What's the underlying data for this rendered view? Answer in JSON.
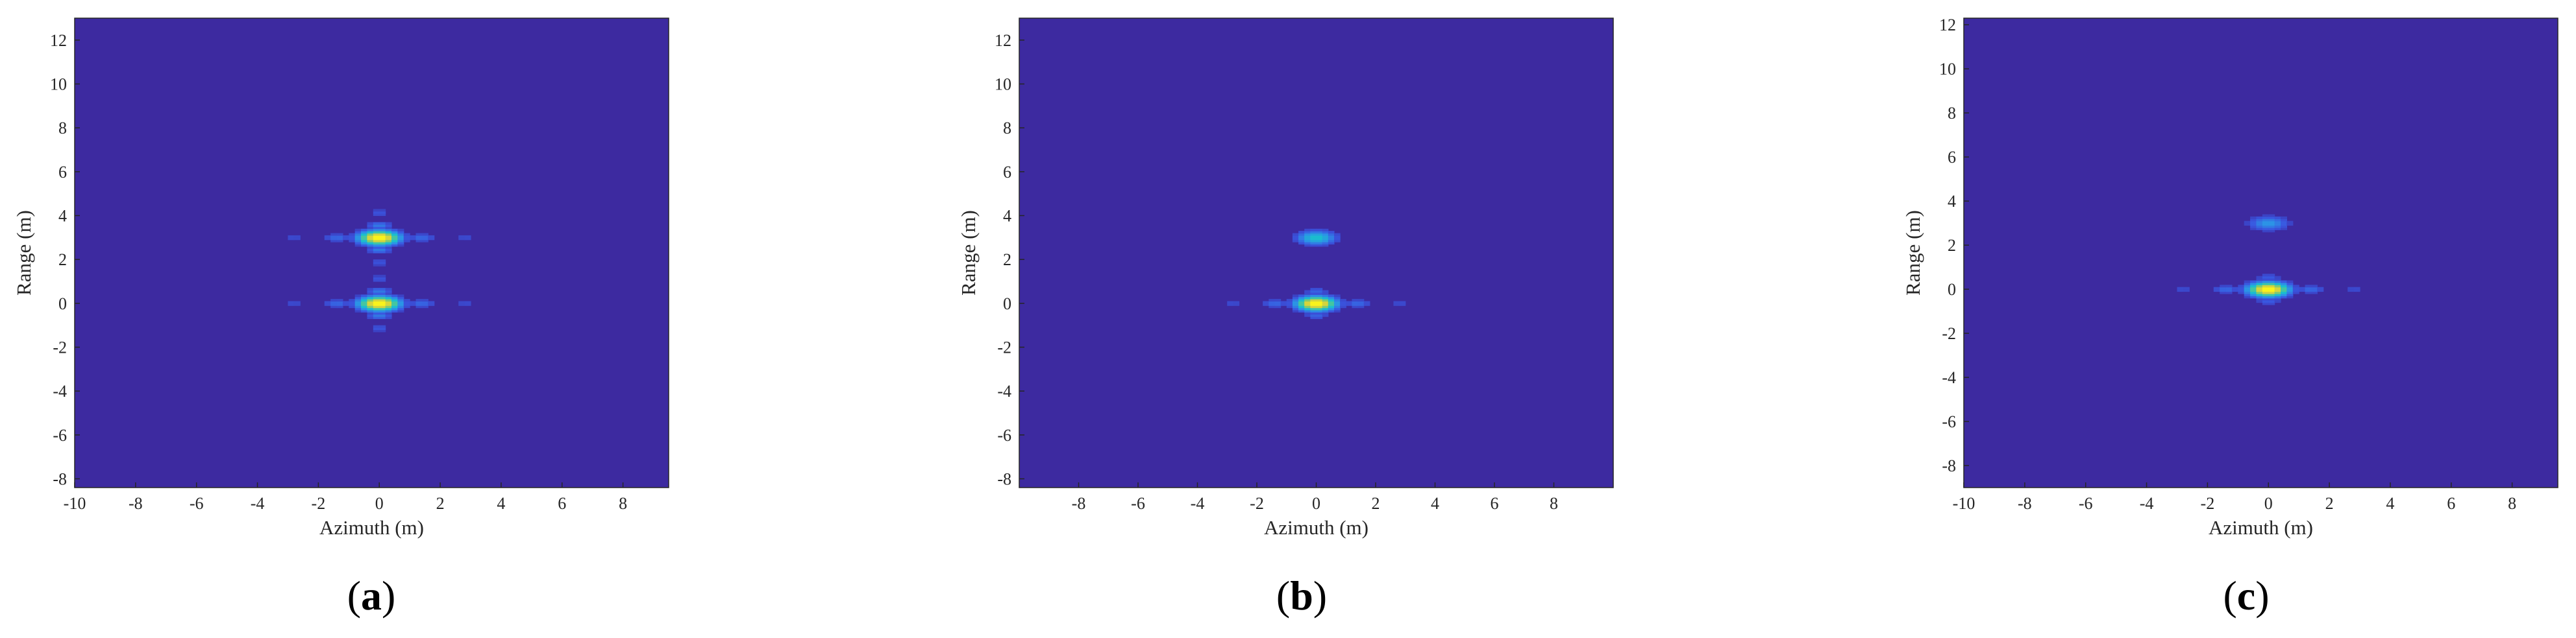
{
  "figure": {
    "background_color": "#3d2aa0",
    "colormap": [
      "#3d2aa0",
      "#3a55e0",
      "#2c93e6",
      "#1bbdcf",
      "#57ca8c",
      "#b8c94d",
      "#f6e32a",
      "#f9fb14"
    ]
  },
  "chart_data": [
    {
      "type": "heatmap",
      "caption": "(a)",
      "xlabel": "Azimuth (m)",
      "ylabel": "Range (m)",
      "xlim": [
        -10,
        9.5
      ],
      "ylim": [
        -8.4,
        13
      ],
      "xticks": [
        -10,
        -8,
        -6,
        -4,
        -2,
        0,
        2,
        4,
        6,
        8
      ],
      "yticks": [
        -8,
        -6,
        -4,
        -2,
        0,
        2,
        4,
        6,
        8,
        10,
        12
      ],
      "targets": [
        {
          "x": 0,
          "y": 3,
          "intensity": 1.0,
          "azimuth_sidelobe_extent": 4.5,
          "range_sidelobe_extent": 1.8
        },
        {
          "x": 0,
          "y": 0,
          "intensity": 1.0,
          "azimuth_sidelobe_extent": 4.5,
          "range_sidelobe_extent": 1.8
        }
      ]
    },
    {
      "type": "heatmap",
      "caption": "(b)",
      "xlabel": "Azimuth (m)",
      "ylabel": "Range (m)",
      "xlim": [
        -10,
        10
      ],
      "ylim": [
        -8.4,
        13
      ],
      "xticks": [
        -8,
        -6,
        -4,
        -2,
        0,
        2,
        4,
        6,
        8
      ],
      "yticks": [
        -8,
        -6,
        -4,
        -2,
        0,
        2,
        4,
        6,
        8,
        10,
        12
      ],
      "targets": [
        {
          "x": 0,
          "y": 3,
          "intensity": 0.45,
          "azimuth_sidelobe_extent": 1.3,
          "range_sidelobe_extent": 1.2
        },
        {
          "x": 0,
          "y": 0,
          "intensity": 1.0,
          "azimuth_sidelobe_extent": 4.5,
          "range_sidelobe_extent": 1.2
        }
      ]
    },
    {
      "type": "heatmap",
      "caption": "(c)",
      "xlabel": "Azimuth (m)",
      "ylabel": "Range (m)",
      "xlim": [
        -10,
        9.5
      ],
      "ylim": [
        -9,
        12.3
      ],
      "xticks": [
        -10,
        -8,
        -6,
        -4,
        -2,
        0,
        2,
        4,
        6,
        8
      ],
      "yticks": [
        -8,
        -6,
        -4,
        -2,
        0,
        2,
        4,
        6,
        8,
        10,
        12
      ],
      "targets": [
        {
          "x": 0,
          "y": 3,
          "intensity": 0.3,
          "azimuth_sidelobe_extent": 0.5,
          "range_sidelobe_extent": 1.6
        },
        {
          "x": 0,
          "y": 0,
          "intensity": 1.0,
          "azimuth_sidelobe_extent": 4.5,
          "range_sidelobe_extent": 1.0
        }
      ]
    }
  ]
}
